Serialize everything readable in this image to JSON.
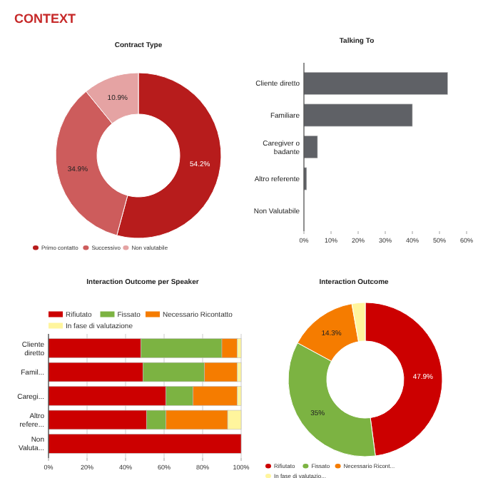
{
  "chart_data": [
    {
      "type": "donut",
      "title": "Contract Type",
      "annotations": [
        "CONTEXT"
      ],
      "categories": [
        "Primo contatto",
        "Successivo",
        "Non valutabile"
      ],
      "values": [
        54.2,
        34.9,
        10.9
      ],
      "colors": [
        "#b71c1c",
        "#cd5c5c",
        "#e5a3a3"
      ],
      "value_labels": [
        "54.2%",
        "34.9%",
        "10.9%"
      ],
      "legend": "bottom"
    },
    {
      "type": "bar",
      "title": "Talking To",
      "orientation": "horizontal",
      "categories": [
        "Cliente diretto",
        "Familiare",
        "Caregiver o badante",
        "Altro referente",
        "Non Valutabile"
      ],
      "values": [
        53,
        40,
        5,
        1,
        0
      ],
      "color": "#5f6166",
      "xlim": [
        0,
        60
      ],
      "xticks": [
        {
          "value": 0,
          "label": "0%"
        },
        {
          "value": 10,
          "label": "10%"
        },
        {
          "value": 20,
          "label": "20%"
        },
        {
          "value": 30,
          "label": "30%"
        },
        {
          "value": 40,
          "label": "40%"
        },
        {
          "value": 50,
          "label": "50%"
        },
        {
          "value": 60,
          "label": "60%"
        }
      ]
    },
    {
      "type": "bar",
      "title": "Interaction Outcome per Speaker",
      "orientation": "horizontal",
      "stacked": true,
      "categories": [
        "Cliente diretto",
        "Famil...",
        "Caregi...",
        "Altro refere...",
        "Non Valuta..."
      ],
      "series": [
        {
          "name": "Rifiutato",
          "color": "#cc0000",
          "values": [
            48,
            49,
            61,
            51,
            100
          ]
        },
        {
          "name": "Fissato",
          "color": "#7cb342",
          "values": [
            42,
            32,
            14,
            10,
            0
          ]
        },
        {
          "name": "Necessario Ricontatto",
          "color": "#f57c00",
          "values": [
            8,
            17,
            23,
            32,
            0
          ]
        },
        {
          "name": "In fase di valutazione",
          "color": "#fff59d",
          "values": [
            2,
            2,
            2,
            7,
            0
          ]
        }
      ],
      "xlim": [
        0,
        100
      ],
      "xticks": [
        {
          "value": 0,
          "label": "0%"
        },
        {
          "value": 20,
          "label": "20%"
        },
        {
          "value": 40,
          "label": "40%"
        },
        {
          "value": 60,
          "label": "60%"
        },
        {
          "value": 80,
          "label": "80%"
        },
        {
          "value": 100,
          "label": "100%"
        }
      ],
      "grid": "x",
      "legend": "top"
    },
    {
      "type": "donut",
      "title": "Interaction Outcome",
      "categories": [
        "Rifiutato",
        "Fissato",
        "Necessario Ricont...",
        "In fase di valutazio..."
      ],
      "values": [
        47.9,
        35,
        14.3,
        2.8
      ],
      "colors": [
        "#cc0000",
        "#7cb342",
        "#f57c00",
        "#fff59d"
      ],
      "value_labels": [
        "47.9%",
        "35%",
        "14.3%",
        null
      ],
      "legend": "bottom"
    }
  ]
}
